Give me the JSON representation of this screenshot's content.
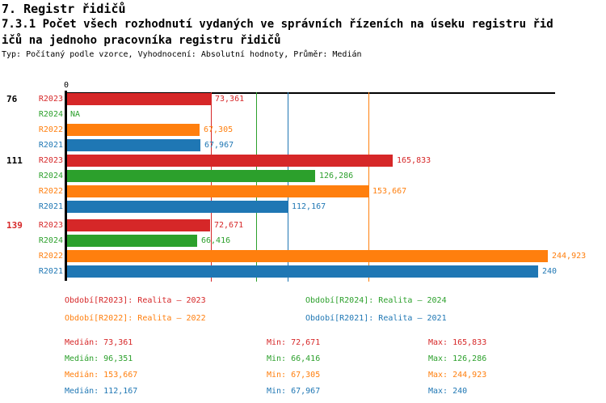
{
  "header": {
    "title_line1": "7. Registr řidičů",
    "title_line2": "7.3.1 Počet všech rozhodnutí vydaných ve správních řízeních na úseku registru řid",
    "title_line3": "ičů na jednoho pracovníka registru řidičů",
    "meta_line": "Typ: Počítaný podle vzorce, Vyhodnocení: Absolutní hodnoty, Průměr: Medián"
  },
  "chart_data": {
    "type": "bar",
    "orientation": "horizontal",
    "axis_origin_label": "0",
    "xlim": [
      0,
      250
    ],
    "grid": "median lines per series, drawn behind bars",
    "legend_position": "below chart, 2x2 grid",
    "series_order": [
      "R2023",
      "R2024",
      "R2022",
      "R2021"
    ],
    "series_colors": {
      "R2023": "#d62728",
      "R2024": "#2ca02c",
      "R2022": "#ff7f0e",
      "R2021": "#1f77b4"
    },
    "groups": [
      {
        "id": "76",
        "id_color": "#000000",
        "bars": [
          {
            "series": "R2023",
            "value": 73.361,
            "label": "73,361"
          },
          {
            "series": "R2024",
            "value": null,
            "label": "NA"
          },
          {
            "series": "R2022",
            "value": 67.305,
            "label": "67,305"
          },
          {
            "series": "R2021",
            "value": 67.967,
            "label": "67,967"
          }
        ]
      },
      {
        "id": "111",
        "id_color": "#000000",
        "bars": [
          {
            "series": "R2023",
            "value": 165.833,
            "label": "165,833"
          },
          {
            "series": "R2024",
            "value": 126.286,
            "label": "126,286"
          },
          {
            "series": "R2022",
            "value": 153.667,
            "label": "153,667"
          },
          {
            "series": "R2021",
            "value": 112.167,
            "label": "112,167"
          }
        ]
      },
      {
        "id": "139",
        "id_color": "#d62728",
        "bars": [
          {
            "series": "R2023",
            "value": 72.671,
            "label": "72,671"
          },
          {
            "series": "R2024",
            "value": 66.416,
            "label": "66,416"
          },
          {
            "series": "R2022",
            "value": 244.923,
            "label": "244,923"
          },
          {
            "series": "R2021",
            "value": 240,
            "label": "240"
          }
        ]
      }
    ],
    "median_lines": {
      "R2023": 73.361,
      "R2024": 96.351,
      "R2022": 153.667,
      "R2021": 112.167
    }
  },
  "legend": {
    "items": [
      {
        "series": "R2023",
        "label": "Období[R2023]: Realita – 2023"
      },
      {
        "series": "R2024",
        "label": "Období[R2024]: Realita – 2024"
      },
      {
        "series": "R2022",
        "label": "Období[R2022]: Realita – 2022"
      },
      {
        "series": "R2021",
        "label": "Období[R2021]: Realita – 2021"
      }
    ]
  },
  "stats": {
    "labels": {
      "median": "Medián",
      "min": "Min",
      "max": "Max"
    },
    "rows": [
      {
        "series": "R2023",
        "median": "73,361",
        "min": "72,671",
        "max": "165,833"
      },
      {
        "series": "R2024",
        "median": "96,351",
        "min": "66,416",
        "max": "126,286"
      },
      {
        "series": "R2022",
        "median": "153,667",
        "min": "67,305",
        "max": "244,923"
      },
      {
        "series": "R2021",
        "median": "112,167",
        "min": "67,967",
        "max": "240"
      }
    ]
  }
}
